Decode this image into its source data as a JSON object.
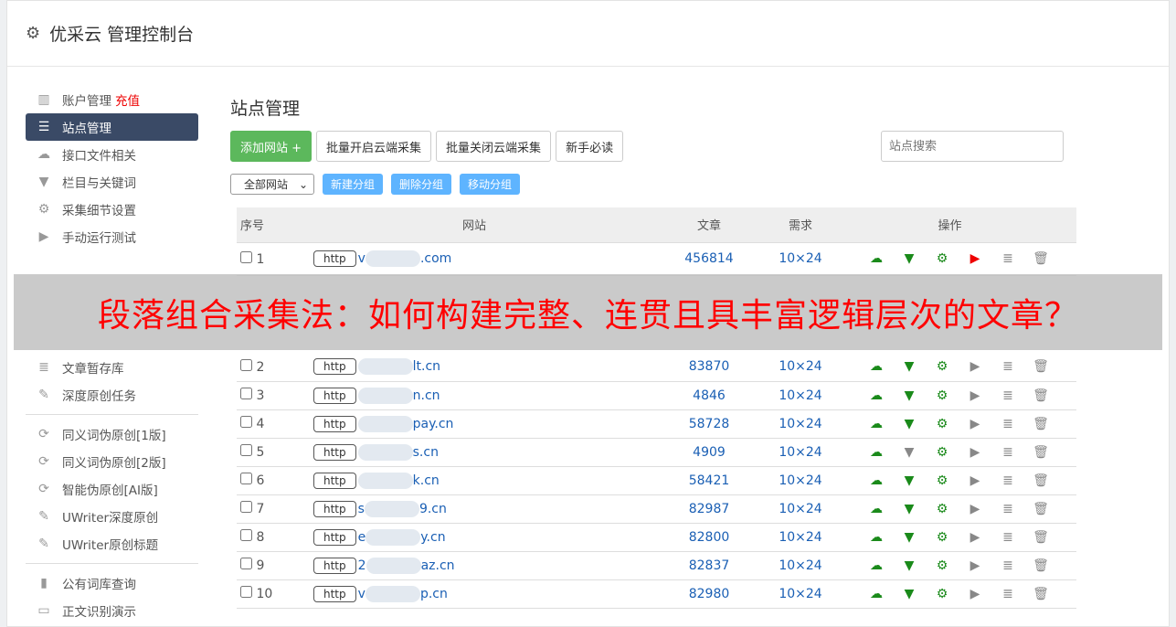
{
  "header": {
    "title": "优采云 管理控制台",
    "icon": "gear-icon"
  },
  "sidebar": {
    "items": [
      {
        "label": "账户管理",
        "extra": "充值",
        "icon": "bar-chart-icon"
      },
      {
        "label": "站点管理",
        "icon": "server-icon",
        "active": true
      },
      {
        "label": "接口文件相关",
        "icon": "cloud-upload-icon"
      },
      {
        "label": "栏目与关键词",
        "icon": "filter-icon"
      },
      {
        "label": "采集细节设置",
        "icon": "gears-icon"
      },
      {
        "label": "手动运行测试",
        "icon": "play-icon"
      },
      {
        "label": "文章暂存库",
        "icon": "database-icon"
      },
      {
        "label": "深度原创任务",
        "icon": "edit-icon"
      },
      {
        "label": "同义词伪原创[1版]",
        "icon": "refresh-icon"
      },
      {
        "label": "同义词伪原创[2版]",
        "icon": "refresh-icon"
      },
      {
        "label": "智能伪原创[AI版]",
        "icon": "refresh-icon"
      },
      {
        "label": "UWriter深度原创",
        "icon": "edit-icon"
      },
      {
        "label": "UWriter原创标题",
        "icon": "edit-icon"
      },
      {
        "label": "公有词库查询",
        "icon": "book-icon"
      },
      {
        "label": "正文识别演示",
        "icon": "monitor-icon"
      }
    ]
  },
  "main": {
    "title": "站点管理",
    "buttons": {
      "add": "添加网站 +",
      "enable": "批量开启云端采集",
      "disable": "批量关闭云端采集",
      "guide": "新手必读"
    },
    "search_placeholder": "站点搜索",
    "group_select": "全部网站",
    "group_buttons": {
      "new": "新建分组",
      "delete": "删除分组",
      "move": "移动分组"
    },
    "columns": [
      "序号",
      "网站",
      "文章",
      "需求",
      "操作"
    ],
    "rows": [
      {
        "no": "1",
        "proto": "http",
        "pre": "v",
        "site": ".com",
        "articles": "456814",
        "need": "10×24",
        "filter_active": true,
        "play_red": true
      },
      {
        "no": "2",
        "proto": "http",
        "pre": "",
        "site": "lt.cn",
        "articles": "83870",
        "need": "10×24",
        "filter_active": true,
        "play_red": false
      },
      {
        "no": "3",
        "proto": "http",
        "pre": "",
        "site": "n.cn",
        "articles": "4846",
        "need": "10×24",
        "filter_active": true,
        "play_red": false
      },
      {
        "no": "4",
        "proto": "http",
        "pre": "",
        "site": "pay.cn",
        "articles": "58728",
        "need": "10×24",
        "filter_active": true,
        "play_red": false
      },
      {
        "no": "5",
        "proto": "http",
        "pre": "",
        "site": "s.cn",
        "articles": "4909",
        "need": "10×24",
        "filter_active": false,
        "play_red": false
      },
      {
        "no": "6",
        "proto": "http",
        "pre": "",
        "site": "k.cn",
        "articles": "58421",
        "need": "10×24",
        "filter_active": true,
        "play_red": false
      },
      {
        "no": "7",
        "proto": "http",
        "pre": "s",
        "site": "9.cn",
        "articles": "82987",
        "need": "10×24",
        "filter_active": true,
        "play_red": false
      },
      {
        "no": "8",
        "proto": "http",
        "pre": "e",
        "site": "y.cn",
        "articles": "82800",
        "need": "10×24",
        "filter_active": true,
        "play_red": false
      },
      {
        "no": "9",
        "proto": "http",
        "pre": "2",
        "site": "az.cn",
        "articles": "82837",
        "need": "10×24",
        "filter_active": true,
        "play_red": false
      },
      {
        "no": "10",
        "proto": "http",
        "pre": "v",
        "site": "p.cn",
        "articles": "82980",
        "need": "10×24",
        "filter_active": true,
        "play_red": false
      }
    ]
  },
  "overlay": {
    "text": "段落组合采集法：如何构建完整、连贯且具丰富逻辑层次的文章？"
  },
  "colors": {
    "active_nav": "#3a4a66",
    "add_button": "#5cb85c",
    "group_button": "#5eb4ff",
    "link": "#1a5fb4",
    "icon_green": "#1a8a1a",
    "overlay_text": "#ff0000"
  }
}
